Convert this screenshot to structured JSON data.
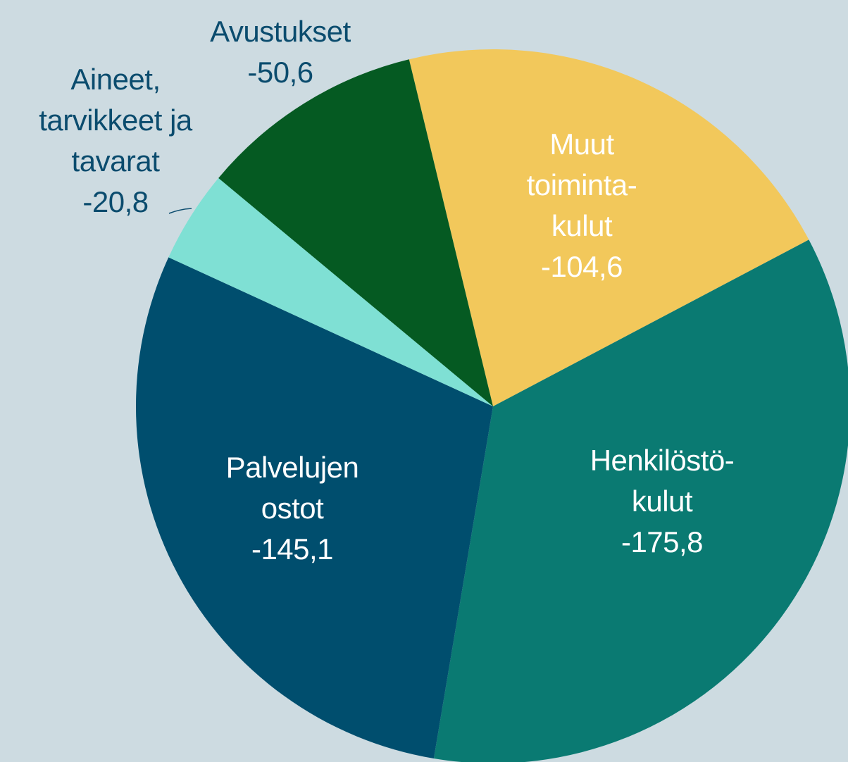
{
  "chart_data": {
    "type": "pie",
    "categories": [
      "Muut toiminta-kulut",
      "Henkilöstö-kulut",
      "Palvelujen ostot",
      "Aineet, tarvikkeet ja tavarat",
      "Avustukset"
    ],
    "values": [
      -104.6,
      -175.8,
      -145.1,
      -20.8,
      -50.6
    ],
    "value_labels": [
      "-104,6",
      "-175,8",
      "-145,1",
      "-20,8",
      "-50,6"
    ],
    "colors": [
      "#f2c85b",
      "#0a7a72",
      "#004e6e",
      "#7fe0d4",
      "#055a22"
    ]
  }
}
